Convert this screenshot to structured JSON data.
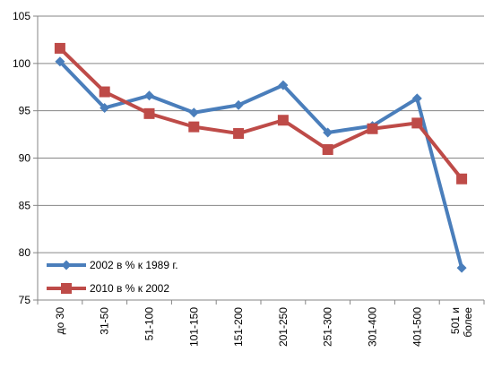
{
  "chart_data": {
    "type": "line",
    "categories": [
      "до 30",
      "31-50",
      "51-100",
      "101-150",
      "151-200",
      "201-250",
      "251-300",
      "301-400",
      "401-500",
      "501 и более"
    ],
    "category_lines": [
      [
        "до 30"
      ],
      [
        "31-50"
      ],
      [
        "51-100"
      ],
      [
        "101-150"
      ],
      [
        "151-200"
      ],
      [
        "201-250"
      ],
      [
        "251-300"
      ],
      [
        "301-400"
      ],
      [
        "401-500"
      ],
      [
        "501 и",
        "более"
      ]
    ],
    "series": [
      {
        "name": "2002 в % к 1989 г.",
        "color": "#4a7ebb",
        "marker": "diamond",
        "values": [
          100.2,
          95.3,
          96.6,
          94.8,
          95.6,
          97.7,
          92.7,
          93.4,
          96.3,
          78.4
        ]
      },
      {
        "name": "2010 в % к 2002",
        "color": "#be4b48",
        "marker": "square",
        "values": [
          101.6,
          97.0,
          94.7,
          93.3,
          92.6,
          94.0,
          90.9,
          93.1,
          93.7,
          87.8
        ]
      }
    ],
    "ylim": [
      75,
      105
    ],
    "yticks": [
      "75",
      "80",
      "85",
      "90",
      "95",
      "100",
      "105"
    ],
    "grid": "horizontal",
    "legend": "lower-left",
    "title": "",
    "xlabel": "",
    "ylabel": ""
  }
}
